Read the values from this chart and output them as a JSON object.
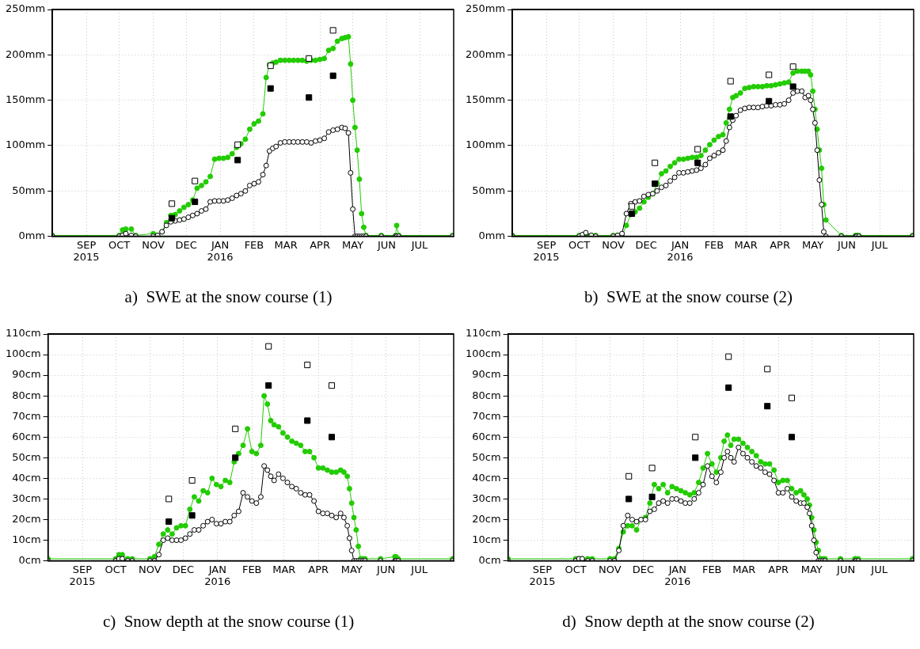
{
  "chart_data": [
    {
      "type": "line",
      "title": "a)  SWE at the snow course (1)",
      "grid": true,
      "legend": false,
      "xlim": [
        "2015-08-01",
        "2016-08-01"
      ],
      "xticks": [
        {
          "value": "2015-09-01",
          "label": "SEP\n2015"
        },
        {
          "value": "2015-10-01",
          "label": "OCT"
        },
        {
          "value": "2015-11-01",
          "label": "NOV"
        },
        {
          "value": "2015-12-01",
          "label": "DEC"
        },
        {
          "value": "2016-01-01",
          "label": "JAN\n2016"
        },
        {
          "value": "2016-02-01",
          "label": "FEB"
        },
        {
          "value": "2016-03-01",
          "label": "MAR"
        },
        {
          "value": "2016-04-01",
          "label": "APR"
        },
        {
          "value": "2016-05-01",
          "label": "MAY"
        },
        {
          "value": "2016-06-01",
          "label": "JUN"
        },
        {
          "value": "2016-07-01",
          "label": "JUL"
        }
      ],
      "ylim": [
        0,
        250
      ],
      "yticks": [
        {
          "value": 0,
          "label": "0mm"
        },
        {
          "value": 50,
          "label": "50mm"
        },
        {
          "value": 100,
          "label": "100mm"
        },
        {
          "value": 150,
          "label": "150mm"
        },
        {
          "value": 200,
          "label": "200mm"
        },
        {
          "value": 250,
          "label": "250mm"
        }
      ],
      "x": [
        "2015-08-01",
        "2015-10-01",
        "2015-10-04",
        "2015-10-07",
        "2015-10-12",
        "2015-10-16",
        "2015-11-01",
        "2015-11-05",
        "2015-11-09",
        "2015-11-13",
        "2015-11-17",
        "2015-11-21",
        "2015-11-25",
        "2015-11-29",
        "2015-12-03",
        "2015-12-07",
        "2015-12-11",
        "2015-12-15",
        "2015-12-19",
        "2015-12-23",
        "2015-12-27",
        "2015-12-31",
        "2016-01-04",
        "2016-01-08",
        "2016-01-12",
        "2016-01-16",
        "2016-01-20",
        "2016-01-24",
        "2016-01-28",
        "2016-02-01",
        "2016-02-05",
        "2016-02-09",
        "2016-02-12",
        "2016-02-15",
        "2016-02-18",
        "2016-02-21",
        "2016-02-25",
        "2016-02-29",
        "2016-03-04",
        "2016-03-08",
        "2016-03-12",
        "2016-03-16",
        "2016-03-20",
        "2016-03-24",
        "2016-03-28",
        "2016-04-01",
        "2016-04-05",
        "2016-04-09",
        "2016-04-13",
        "2016-04-17",
        "2016-04-21",
        "2016-04-24",
        "2016-04-27",
        "2016-04-29",
        "2016-05-01",
        "2016-05-03",
        "2016-05-05",
        "2016-05-07",
        "2016-05-09",
        "2016-05-11",
        "2016-05-13",
        "2016-05-27",
        "2016-06-09",
        "2016-06-10",
        "2016-06-12",
        "2016-07-31"
      ],
      "series": [
        {
          "marker": "circle",
          "color": "#000000",
          "values": [
            0,
            0,
            1,
            3,
            1,
            0,
            0,
            1,
            5,
            12,
            16,
            17,
            18,
            19,
            21,
            23,
            25,
            28,
            30,
            38,
            39,
            39,
            39,
            40,
            42,
            45,
            47,
            50,
            56,
            58,
            60,
            68,
            78,
            94,
            97,
            99,
            103,
            104,
            104,
            104,
            104,
            104,
            104,
            103,
            105,
            106,
            108,
            115,
            117,
            118,
            120,
            119,
            114,
            70,
            30,
            0,
            0,
            0,
            0,
            0,
            0,
            0,
            0,
            0,
            0,
            0
          ]
        },
        {
          "marker": "circle",
          "color": "#22cc00",
          "values": [
            1,
            1,
            7,
            8,
            8,
            1,
            3,
            1,
            5,
            15,
            23,
            24,
            28,
            32,
            35,
            40,
            53,
            56,
            60,
            66,
            85,
            86,
            86,
            87,
            91,
            98,
            102,
            107,
            118,
            124,
            127,
            135,
            175,
            189,
            191,
            192,
            194,
            194,
            194,
            194,
            194,
            194,
            193,
            194,
            194,
            195,
            196,
            205,
            207,
            215,
            218,
            219,
            220,
            190,
            150,
            120,
            95,
            63,
            25,
            10,
            1,
            1,
            1,
            12,
            1,
            1
          ]
        },
        {
          "type": "scatter",
          "marker": "square",
          "color": "#ffffff",
          "x": [
            "2015-11-18",
            "2015-12-09",
            "2016-01-17",
            "2016-02-16",
            "2016-03-22",
            "2016-04-13"
          ],
          "values": [
            36,
            61,
            101,
            188,
            196,
            227
          ]
        },
        {
          "type": "scatter",
          "marker": "square",
          "color": "#000000",
          "x": [
            "2015-11-18",
            "2015-12-09",
            "2016-01-17",
            "2016-02-16",
            "2016-03-22",
            "2016-04-13"
          ],
          "values": [
            20,
            38,
            84,
            163,
            153,
            177
          ]
        }
      ]
    },
    {
      "type": "line",
      "title": "b)  SWE at the snow course (2)",
      "grid": true,
      "legend": false,
      "xlim": [
        "2015-08-01",
        "2016-08-01"
      ],
      "xticks": [
        {
          "value": "2015-09-01",
          "label": "SEP\n2015"
        },
        {
          "value": "2015-10-01",
          "label": "OCT"
        },
        {
          "value": "2015-11-01",
          "label": "NOV"
        },
        {
          "value": "2015-12-01",
          "label": "DEC"
        },
        {
          "value": "2016-01-01",
          "label": "JAN\n2016"
        },
        {
          "value": "2016-02-01",
          "label": "FEB"
        },
        {
          "value": "2016-03-01",
          "label": "MAR"
        },
        {
          "value": "2016-04-01",
          "label": "APR"
        },
        {
          "value": "2016-05-01",
          "label": "MAY"
        },
        {
          "value": "2016-06-01",
          "label": "JUN"
        },
        {
          "value": "2016-07-01",
          "label": "JUL"
        }
      ],
      "ylim": [
        0,
        250
      ],
      "yticks": [
        {
          "value": 0,
          "label": "0mm"
        },
        {
          "value": 50,
          "label": "50mm"
        },
        {
          "value": 100,
          "label": "100mm"
        },
        {
          "value": 150,
          "label": "150mm"
        },
        {
          "value": 200,
          "label": "200mm"
        },
        {
          "value": 250,
          "label": "250mm"
        }
      ],
      "x": [
        "2015-08-01",
        "2015-10-01",
        "2015-10-04",
        "2015-10-07",
        "2015-10-12",
        "2015-10-16",
        "2015-11-01",
        "2015-11-05",
        "2015-11-09",
        "2015-11-13",
        "2015-11-17",
        "2015-11-21",
        "2015-11-25",
        "2015-11-29",
        "2015-12-03",
        "2015-12-07",
        "2015-12-11",
        "2015-12-15",
        "2015-12-19",
        "2015-12-23",
        "2015-12-27",
        "2015-12-31",
        "2016-01-04",
        "2016-01-08",
        "2016-01-12",
        "2016-01-16",
        "2016-01-20",
        "2016-01-24",
        "2016-01-28",
        "2016-02-01",
        "2016-02-05",
        "2016-02-09",
        "2016-02-12",
        "2016-02-15",
        "2016-02-18",
        "2016-02-21",
        "2016-02-25",
        "2016-02-29",
        "2016-03-04",
        "2016-03-08",
        "2016-03-12",
        "2016-03-16",
        "2016-03-20",
        "2016-03-24",
        "2016-03-28",
        "2016-04-01",
        "2016-04-05",
        "2016-04-09",
        "2016-04-13",
        "2016-04-17",
        "2016-04-21",
        "2016-04-24",
        "2016-04-27",
        "2016-04-29",
        "2016-05-01",
        "2016-05-03",
        "2016-05-05",
        "2016-05-07",
        "2016-05-09",
        "2016-05-11",
        "2016-05-13",
        "2016-05-27",
        "2016-06-09",
        "2016-06-10",
        "2016-06-12",
        "2016-07-31"
      ],
      "series": [
        {
          "marker": "circle",
          "color": "#000000",
          "values": [
            0,
            0,
            2,
            4,
            1,
            0,
            0,
            1,
            3,
            25,
            36,
            38,
            39,
            44,
            46,
            47,
            50,
            54,
            56,
            61,
            65,
            70,
            70,
            71,
            72,
            73,
            75,
            79,
            86,
            89,
            92,
            95,
            105,
            120,
            128,
            133,
            139,
            141,
            142,
            142,
            142,
            143,
            144,
            144,
            145,
            145,
            146,
            150,
            158,
            160,
            160,
            153,
            155,
            150,
            140,
            125,
            95,
            62,
            35,
            5,
            0,
            0,
            0,
            0,
            0,
            0
          ]
        },
        {
          "marker": "circle",
          "color": "#22cc00",
          "values": [
            1,
            1,
            1,
            2,
            1,
            1,
            1,
            1,
            1,
            12,
            24,
            27,
            31,
            38,
            43,
            47,
            58,
            69,
            72,
            77,
            81,
            85,
            85,
            86,
            87,
            87,
            89,
            95,
            101,
            106,
            110,
            112,
            125,
            140,
            153,
            155,
            158,
            163,
            164,
            165,
            165,
            165,
            166,
            166,
            167,
            168,
            169,
            170,
            180,
            182,
            182,
            182,
            182,
            178,
            160,
            140,
            118,
            95,
            75,
            35,
            18,
            1,
            1,
            1,
            1,
            1
          ]
        },
        {
          "type": "scatter",
          "marker": "square",
          "color": "#ffffff",
          "x": [
            "2015-11-18",
            "2015-12-09",
            "2016-01-17",
            "2016-02-16",
            "2016-03-22",
            "2016-04-13"
          ],
          "values": [
            33,
            81,
            96,
            171,
            178,
            187
          ]
        },
        {
          "type": "scatter",
          "marker": "square",
          "color": "#000000",
          "x": [
            "2015-11-18",
            "2015-12-09",
            "2016-01-17",
            "2016-02-16",
            "2016-03-22",
            "2016-04-13"
          ],
          "values": [
            25,
            58,
            81,
            132,
            149,
            165
          ]
        }
      ]
    },
    {
      "type": "line",
      "title": "c)  Snow depth at the snow course (1)",
      "grid": true,
      "legend": false,
      "xlim": [
        "2015-08-01",
        "2016-08-01"
      ],
      "xticks": [
        {
          "value": "2015-09-01",
          "label": "SEP\n2015"
        },
        {
          "value": "2015-10-01",
          "label": "OCT"
        },
        {
          "value": "2015-11-01",
          "label": "NOV"
        },
        {
          "value": "2015-12-01",
          "label": "DEC"
        },
        {
          "value": "2016-01-01",
          "label": "JAN\n2016"
        },
        {
          "value": "2016-02-01",
          "label": "FEB"
        },
        {
          "value": "2016-03-01",
          "label": "MAR"
        },
        {
          "value": "2016-04-01",
          "label": "APR"
        },
        {
          "value": "2016-05-01",
          "label": "MAY"
        },
        {
          "value": "2016-06-01",
          "label": "JUN"
        },
        {
          "value": "2016-07-01",
          "label": "JUL"
        }
      ],
      "ylim": [
        0,
        110
      ],
      "yticks": [
        {
          "value": 0,
          "label": "0cm"
        },
        {
          "value": 10,
          "label": "10cm"
        },
        {
          "value": 20,
          "label": "20cm"
        },
        {
          "value": 30,
          "label": "30cm"
        },
        {
          "value": 40,
          "label": "40cm"
        },
        {
          "value": 50,
          "label": "50cm"
        },
        {
          "value": 60,
          "label": "60cm"
        },
        {
          "value": 70,
          "label": "70cm"
        },
        {
          "value": 80,
          "label": "80cm"
        },
        {
          "value": 90,
          "label": "90cm"
        },
        {
          "value": 100,
          "label": "100cm"
        },
        {
          "value": 110,
          "label": "110cm"
        }
      ],
      "x": [
        "2015-08-01",
        "2015-10-01",
        "2015-10-04",
        "2015-10-07",
        "2015-10-12",
        "2015-10-16",
        "2015-11-01",
        "2015-11-05",
        "2015-11-09",
        "2015-11-13",
        "2015-11-17",
        "2015-11-21",
        "2015-11-25",
        "2015-11-29",
        "2015-12-03",
        "2015-12-07",
        "2015-12-11",
        "2015-12-15",
        "2015-12-19",
        "2015-12-23",
        "2015-12-27",
        "2015-12-31",
        "2016-01-04",
        "2016-01-08",
        "2016-01-12",
        "2016-01-16",
        "2016-01-20",
        "2016-01-24",
        "2016-01-28",
        "2016-02-01",
        "2016-02-05",
        "2016-02-09",
        "2016-02-12",
        "2016-02-15",
        "2016-02-18",
        "2016-02-21",
        "2016-02-25",
        "2016-02-29",
        "2016-03-04",
        "2016-03-08",
        "2016-03-12",
        "2016-03-16",
        "2016-03-20",
        "2016-03-24",
        "2016-03-28",
        "2016-04-01",
        "2016-04-05",
        "2016-04-09",
        "2016-04-13",
        "2016-04-17",
        "2016-04-21",
        "2016-04-24",
        "2016-04-27",
        "2016-04-29",
        "2016-05-01",
        "2016-05-03",
        "2016-05-05",
        "2016-05-07",
        "2016-05-09",
        "2016-05-11",
        "2016-05-13",
        "2016-05-27",
        "2016-06-09",
        "2016-06-10",
        "2016-06-12",
        "2016-07-31"
      ],
      "series": [
        {
          "marker": "circle",
          "color": "#000000",
          "values": [
            0,
            0,
            1,
            1,
            0,
            0,
            0,
            0,
            3,
            10,
            11,
            10,
            10,
            10,
            11,
            13,
            15,
            15,
            17,
            19,
            20,
            18,
            18,
            19,
            19,
            22,
            24,
            33,
            31,
            29,
            28,
            31,
            46,
            44,
            41,
            39,
            42,
            40,
            38,
            36,
            35,
            33,
            32,
            32,
            29,
            24,
            23,
            23,
            22,
            21,
            23,
            21,
            17,
            11,
            5,
            0,
            0,
            0,
            0,
            0,
            0,
            0,
            0,
            0,
            0,
            0
          ]
        },
        {
          "marker": "circle",
          "color": "#22cc00",
          "values": [
            1,
            1,
            3,
            3,
            1,
            1,
            1,
            2,
            8,
            13,
            15,
            13,
            16,
            17,
            17,
            25,
            31,
            29,
            34,
            33,
            40,
            37,
            36,
            39,
            38,
            48,
            52,
            56,
            64,
            53,
            52,
            56,
            80,
            76,
            68,
            66,
            65,
            62,
            60,
            58,
            57,
            56,
            53,
            53,
            50,
            45,
            45,
            44,
            43,
            43,
            44,
            43,
            41,
            35,
            28,
            21,
            15,
            7,
            1,
            1,
            1,
            1,
            2,
            2,
            1,
            1
          ]
        },
        {
          "type": "scatter",
          "marker": "square",
          "color": "#ffffff",
          "x": [
            "2015-11-18",
            "2015-12-09",
            "2016-01-17",
            "2016-02-16",
            "2016-03-22",
            "2016-04-13"
          ],
          "values": [
            30,
            39,
            64,
            104,
            95,
            85
          ]
        },
        {
          "type": "scatter",
          "marker": "square",
          "color": "#000000",
          "x": [
            "2015-11-18",
            "2015-12-09",
            "2016-01-17",
            "2016-02-16",
            "2016-03-22",
            "2016-04-13"
          ],
          "values": [
            19,
            22,
            50,
            85,
            68,
            60
          ]
        }
      ]
    },
    {
      "type": "line",
      "title": "d)  Snow depth at the snow course (2)",
      "grid": true,
      "legend": false,
      "xlim": [
        "2015-08-01",
        "2016-08-01"
      ],
      "xticks": [
        {
          "value": "2015-09-01",
          "label": "SEP\n2015"
        },
        {
          "value": "2015-10-01",
          "label": "OCT"
        },
        {
          "value": "2015-11-01",
          "label": "NOV"
        },
        {
          "value": "2015-12-01",
          "label": "DEC"
        },
        {
          "value": "2016-01-01",
          "label": "JAN\n2016"
        },
        {
          "value": "2016-02-01",
          "label": "FEB"
        },
        {
          "value": "2016-03-01",
          "label": "MAR"
        },
        {
          "value": "2016-04-01",
          "label": "APR"
        },
        {
          "value": "2016-05-01",
          "label": "MAY"
        },
        {
          "value": "2016-06-01",
          "label": "JUN"
        },
        {
          "value": "2016-07-01",
          "label": "JUL"
        }
      ],
      "ylim": [
        0,
        110
      ],
      "yticks": [
        {
          "value": 0,
          "label": "0cm"
        },
        {
          "value": 10,
          "label": "10cm"
        },
        {
          "value": 20,
          "label": "20cm"
        },
        {
          "value": 30,
          "label": "30cm"
        },
        {
          "value": 40,
          "label": "40cm"
        },
        {
          "value": 50,
          "label": "50cm"
        },
        {
          "value": 60,
          "label": "60cm"
        },
        {
          "value": 70,
          "label": "70cm"
        },
        {
          "value": 80,
          "label": "80cm"
        },
        {
          "value": 90,
          "label": "90cm"
        },
        {
          "value": 100,
          "label": "100cm"
        },
        {
          "value": 110,
          "label": "110cm"
        }
      ],
      "x": [
        "2015-08-01",
        "2015-10-01",
        "2015-10-04",
        "2015-10-07",
        "2015-10-12",
        "2015-10-16",
        "2015-11-01",
        "2015-11-05",
        "2015-11-09",
        "2015-11-13",
        "2015-11-17",
        "2015-11-21",
        "2015-11-25",
        "2015-11-29",
        "2015-12-03",
        "2015-12-07",
        "2015-12-11",
        "2015-12-15",
        "2015-12-19",
        "2015-12-23",
        "2015-12-27",
        "2015-12-31",
        "2016-01-04",
        "2016-01-08",
        "2016-01-12",
        "2016-01-16",
        "2016-01-20",
        "2016-01-24",
        "2016-01-28",
        "2016-02-01",
        "2016-02-05",
        "2016-02-09",
        "2016-02-12",
        "2016-02-15",
        "2016-02-18",
        "2016-02-21",
        "2016-02-25",
        "2016-02-29",
        "2016-03-04",
        "2016-03-08",
        "2016-03-12",
        "2016-03-16",
        "2016-03-20",
        "2016-03-24",
        "2016-03-28",
        "2016-04-01",
        "2016-04-05",
        "2016-04-09",
        "2016-04-13",
        "2016-04-17",
        "2016-04-21",
        "2016-04-24",
        "2016-04-27",
        "2016-04-29",
        "2016-05-01",
        "2016-05-03",
        "2016-05-05",
        "2016-05-07",
        "2016-05-09",
        "2016-05-11",
        "2016-05-13",
        "2016-05-27",
        "2016-06-09",
        "2016-06-10",
        "2016-06-12",
        "2016-07-31"
      ],
      "series": [
        {
          "marker": "circle",
          "color": "#000000",
          "values": [
            0,
            0,
            1,
            1,
            0,
            0,
            0,
            0,
            5,
            17,
            22,
            20,
            19,
            20,
            20,
            24,
            25,
            28,
            29,
            28,
            30,
            30,
            29,
            28,
            28,
            30,
            33,
            37,
            46,
            41,
            38,
            43,
            50,
            53,
            50,
            48,
            55,
            52,
            50,
            48,
            46,
            45,
            43,
            42,
            39,
            33,
            33,
            35,
            31,
            29,
            28,
            28,
            26,
            23,
            17,
            10,
            4,
            0,
            0,
            0,
            0,
            0,
            0,
            0,
            0,
            0
          ]
        },
        {
          "marker": "circle",
          "color": "#22cc00",
          "values": [
            1,
            1,
            1,
            1,
            1,
            1,
            1,
            1,
            6,
            14,
            17,
            17,
            15,
            20,
            21,
            28,
            37,
            35,
            37,
            33,
            36,
            35,
            34,
            33,
            32,
            33,
            38,
            45,
            52,
            47,
            43,
            50,
            58,
            61,
            56,
            59,
            59,
            57,
            55,
            53,
            51,
            48,
            47,
            47,
            44,
            38,
            39,
            39,
            35,
            33,
            34,
            32,
            30,
            27,
            21,
            15,
            9,
            5,
            1,
            1,
            1,
            1,
            1,
            1,
            1,
            1
          ]
        },
        {
          "type": "scatter",
          "marker": "square",
          "color": "#ffffff",
          "x": [
            "2015-11-18",
            "2015-12-09",
            "2016-01-17",
            "2016-02-16",
            "2016-03-22",
            "2016-04-13"
          ],
          "values": [
            41,
            45,
            60,
            99,
            93,
            79
          ]
        },
        {
          "type": "scatter",
          "marker": "square",
          "color": "#000000",
          "x": [
            "2015-11-18",
            "2015-12-09",
            "2016-01-17",
            "2016-02-16",
            "2016-03-22",
            "2016-04-13"
          ],
          "values": [
            30,
            31,
            50,
            84,
            75,
            60
          ]
        }
      ]
    }
  ]
}
